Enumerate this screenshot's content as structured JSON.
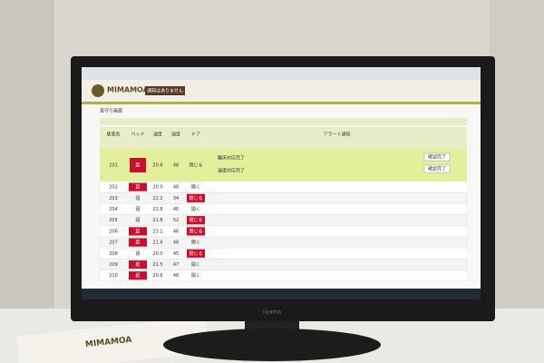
{
  "header": {
    "logo": "MIMAMOA",
    "tab": "通知はありません"
  },
  "page_title": "見守り画面",
  "table": {
    "headers": [
      "居室名",
      "ベッド",
      "温度",
      "湿度",
      "ドア",
      "アラート通知"
    ],
    "alert": {
      "room": "201",
      "bed": "起",
      "temp": "20.6",
      "humidity": "48",
      "door": "閉じる",
      "messages": [
        "離床対応完了",
        "温度対応完了"
      ],
      "buttons": [
        "確認完了",
        "確認完了"
      ]
    },
    "rows": [
      [
        "202",
        "起",
        "20.0",
        "48",
        "開く"
      ],
      [
        "203",
        "寝",
        "22.2",
        "34",
        "閉じる"
      ],
      [
        "204",
        "寝",
        "22.8",
        "46",
        "開く"
      ],
      [
        "205",
        "寝",
        "21.8",
        "52",
        "閉じる"
      ],
      [
        "206",
        "起",
        "23.1",
        "46",
        "閉じる"
      ],
      [
        "207",
        "起",
        "21.6",
        "48",
        "開く"
      ],
      [
        "208",
        "寝",
        "20.0",
        "45",
        "閉じる"
      ],
      [
        "209",
        "起",
        "21.5",
        "47",
        "開く"
      ],
      [
        "210",
        "起",
        "20.6",
        "48",
        "開く"
      ]
    ]
  },
  "monitor_brand": "iiyama"
}
